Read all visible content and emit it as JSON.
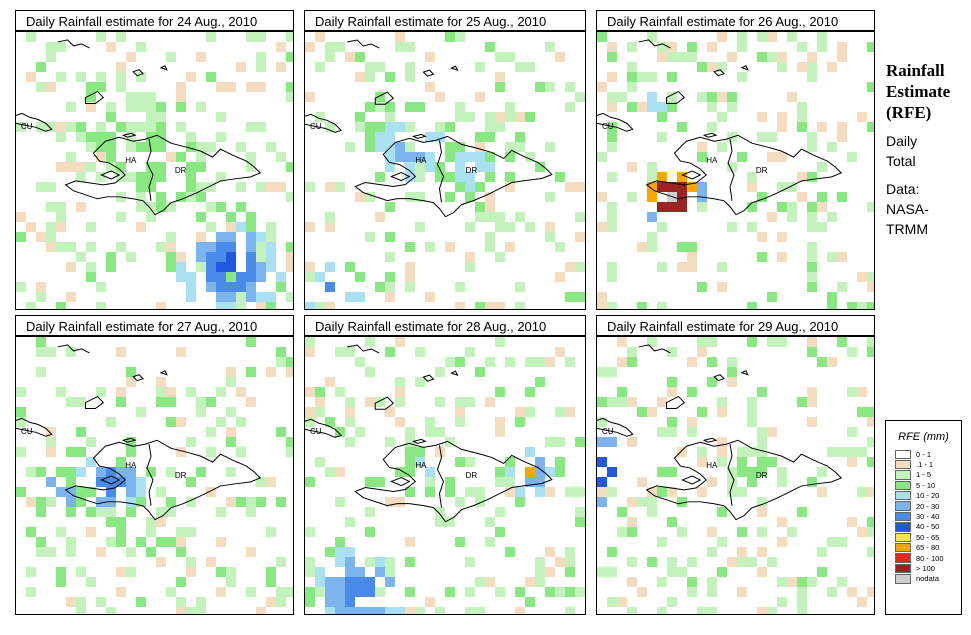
{
  "panels": [
    {
      "title": "Daily Rainfall estimate for  24 Aug., 2010"
    },
    {
      "title": "Daily Rainfall estimate for  25 Aug., 2010"
    },
    {
      "title": "Daily Rainfall estimate for  26 Aug., 2010"
    },
    {
      "title": "Daily Rainfall estimate for  27 Aug., 2010"
    },
    {
      "title": "Daily Rainfall estimate for  28 Aug., 2010"
    },
    {
      "title": "Daily Rainfall estimate for  29 Aug., 2010"
    }
  ],
  "map_labels": {
    "cuba": "CU",
    "haiti": "HA",
    "dominican_republic": "DR"
  },
  "side": {
    "title_line1": "Rainfall",
    "title_line2": "Estimate",
    "title_line3": "(RFE)",
    "line1": "Daily",
    "line2": "Total",
    "line3": "Data:",
    "line4": "NASA-",
    "line5": "TRMM"
  },
  "legend": {
    "title": "RFE (mm)",
    "classes": [
      {
        "label": "0 - 1",
        "color": "#ffffff"
      },
      {
        "label": ".1 - 1",
        "color": "#f3dcc0"
      },
      {
        "label": "1 - 5",
        "color": "#c4f2bd"
      },
      {
        "label": "5 - 10",
        "color": "#8ae883"
      },
      {
        "label": "10 - 20",
        "color": "#a9e1f2"
      },
      {
        "label": "20 - 30",
        "color": "#7cb4f0"
      },
      {
        "label": "30 - 40",
        "color": "#4a8ae8"
      },
      {
        "label": "40 - 50",
        "color": "#2058e0"
      },
      {
        "label": "50 - 65",
        "color": "#fde44a"
      },
      {
        "label": "65 - 80",
        "color": "#f7a800"
      },
      {
        "label": "80 - 100",
        "color": "#d72e1a"
      },
      {
        "label": "> 100",
        "color": "#9b2323"
      },
      {
        "label": "nodata",
        "color": "#cfcfcf"
      }
    ]
  }
}
